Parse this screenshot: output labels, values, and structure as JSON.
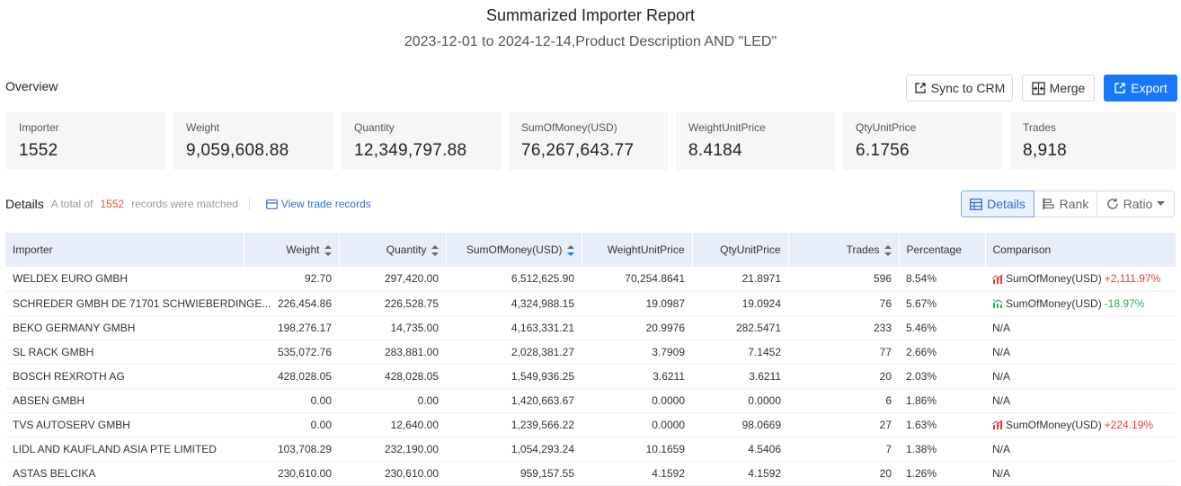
{
  "report": {
    "title": "Summarized Importer Report",
    "subtitle": "2023-12-01 to 2024-12-14,Product Description AND \"LED\""
  },
  "overview": {
    "label": "Overview",
    "actions": {
      "sync": "Sync to CRM",
      "merge": "Merge",
      "export": "Export"
    },
    "cards": [
      {
        "label": "Importer",
        "value": "1552"
      },
      {
        "label": "Weight",
        "value": "9,059,608.88"
      },
      {
        "label": "Quantity",
        "value": "12,349,797.88"
      },
      {
        "label": "SumOfMoney(USD)",
        "value": "76,267,643.77"
      },
      {
        "label": "WeightUnitPrice",
        "value": "8.4184"
      },
      {
        "label": "QtyUnitPrice",
        "value": "6.1756"
      },
      {
        "label": "Trades",
        "value": "8,918"
      }
    ]
  },
  "details": {
    "title": "Details",
    "total_prefix": "A total of",
    "total_count": "1552",
    "total_suffix": "records were matched",
    "view_link": "View trade records",
    "views": {
      "details": "Details",
      "rank": "Rank",
      "ratio": "Ratio"
    }
  },
  "table": {
    "columns": [
      "Importer",
      "Weight",
      "Quantity",
      "SumOfMoney(USD)",
      "WeightUnitPrice",
      "QtyUnitPrice",
      "Trades",
      "Percentage",
      "Comparison"
    ],
    "rows": [
      {
        "importer": "WELDEX EURO GMBH",
        "weight": "92.70",
        "quantity": "297,420.00",
        "money": "6,512,625.90",
        "wup": "70,254.8641",
        "qup": "21.8971",
        "trades": "596",
        "pct": "8.54%",
        "cmp_metric": "SumOfMoney(USD)",
        "cmp_delta": "+2,111.97%",
        "cmp_trend": "up"
      },
      {
        "importer": "SCHREDER GMBH DE 71701 SCHWIEBERDINGE...",
        "weight": "226,454.86",
        "quantity": "226,528.75",
        "money": "4,324,988.15",
        "wup": "19.0987",
        "qup": "19.0924",
        "trades": "76",
        "pct": "5.67%",
        "cmp_metric": "SumOfMoney(USD)",
        "cmp_delta": "-18.97%",
        "cmp_trend": "down"
      },
      {
        "importer": "BEKO GERMANY GMBH",
        "weight": "198,276.17",
        "quantity": "14,735.00",
        "money": "4,163,331.21",
        "wup": "20.9976",
        "qup": "282.5471",
        "trades": "233",
        "pct": "5.46%",
        "cmp_na": "N/A"
      },
      {
        "importer": "SL RACK GMBH",
        "weight": "535,072.76",
        "quantity": "283,881.00",
        "money": "2,028,381.27",
        "wup": "3.7909",
        "qup": "7.1452",
        "trades": "77",
        "pct": "2.66%",
        "cmp_na": "N/A"
      },
      {
        "importer": "BOSCH REXROTH AG",
        "weight": "428,028.05",
        "quantity": "428,028.05",
        "money": "1,549,936.25",
        "wup": "3.6211",
        "qup": "3.6211",
        "trades": "20",
        "pct": "2.03%",
        "cmp_na": "N/A"
      },
      {
        "importer": "ABSEN GMBH",
        "weight": "0.00",
        "quantity": "0.00",
        "money": "1,420,663.67",
        "wup": "0.0000",
        "qup": "0.0000",
        "trades": "6",
        "pct": "1.86%",
        "cmp_na": "N/A"
      },
      {
        "importer": "TVS AUTOSERV GMBH",
        "weight": "0.00",
        "quantity": "12,640.00",
        "money": "1,239,566.22",
        "wup": "0.0000",
        "qup": "98.0669",
        "trades": "27",
        "pct": "1.63%",
        "cmp_metric": "SumOfMoney(USD)",
        "cmp_delta": "+224.19%",
        "cmp_trend": "up"
      },
      {
        "importer": "LIDL AND KAUFLAND ASIA PTE LIMITED",
        "weight": "103,708.29",
        "quantity": "232,190.00",
        "money": "1,054,293.24",
        "wup": "10.1659",
        "qup": "4.5406",
        "trades": "7",
        "pct": "1.38%",
        "cmp_na": "N/A"
      },
      {
        "importer": "ASTAS BELCIKA",
        "weight": "230,610.00",
        "quantity": "230,610.00",
        "money": "959,157.55",
        "wup": "4.1592",
        "qup": "4.1592",
        "trades": "20",
        "pct": "1.26%",
        "cmp_na": "N/A"
      }
    ]
  },
  "colors": {
    "accent": "#1677ff",
    "link": "#2f6fd6",
    "header_bg": "#e7eef9",
    "up": "#e23b3b",
    "down": "#2eaa55",
    "count": "#e8563b"
  },
  "icons": {
    "sync": "export-box-icon",
    "merge": "merge-icon",
    "export": "export-icon",
    "view": "card-icon",
    "details": "table-icon",
    "rank": "bar-chart-icon",
    "ratio": "refresh-icon",
    "up": "trend-up-icon",
    "down": "trend-down-icon"
  }
}
